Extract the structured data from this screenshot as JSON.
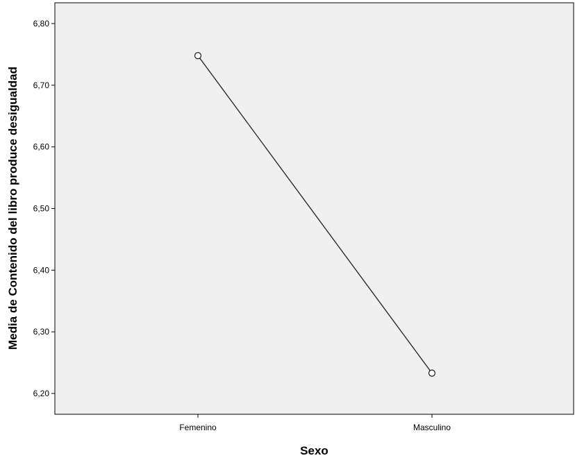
{
  "chart_data": {
    "type": "line",
    "title": "",
    "xlabel": "Sexo",
    "ylabel": "Media de Contenido del libro produce desigualdad",
    "categories": [
      "Femenino",
      "Masculino"
    ],
    "series": [
      {
        "values": [
          6.748,
          6.233
        ]
      }
    ],
    "ylim": [
      6.17,
      6.83
    ],
    "yticks": [
      6.2,
      6.3,
      6.4,
      6.5,
      6.6,
      6.7,
      6.8
    ],
    "ytick_labels": [
      "6,20",
      "6,30",
      "6,40",
      "6,50",
      "6,60",
      "6,70",
      "6,80"
    ],
    "grid": false,
    "legend": "none",
    "marker": "open-circle",
    "colors": {
      "plot_background": "#f0f0f0",
      "plot_border": "#000000",
      "line": "#2b2b2b",
      "marker_fill": "#ffffff"
    }
  }
}
